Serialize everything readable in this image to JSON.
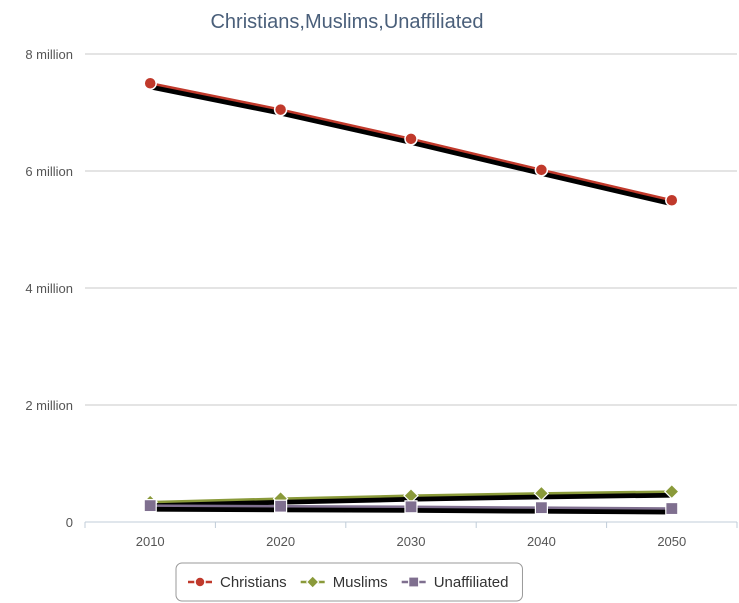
{
  "chart_data": {
    "type": "line",
    "title": "Christians,Muslims,Unaffiliated",
    "xlabel": "",
    "ylabel": "",
    "categories": [
      "2010",
      "2020",
      "2030",
      "2040",
      "2050"
    ],
    "y_ticks": [
      {
        "value": 0,
        "label": "0"
      },
      {
        "value": 2000000,
        "label": "2 million"
      },
      {
        "value": 4000000,
        "label": "4 million"
      },
      {
        "value": 6000000,
        "label": "6 million"
      },
      {
        "value": 8000000,
        "label": "8 million"
      }
    ],
    "ylim": [
      0,
      8000000
    ],
    "grid": true,
    "legend_position": "bottom",
    "series": [
      {
        "name": "Christians",
        "color": "#c0392b",
        "marker": "circle",
        "values": [
          7500000,
          7050000,
          6550000,
          6020000,
          5500000
        ]
      },
      {
        "name": "Muslims",
        "color": "#8a9a3a",
        "marker": "diamond",
        "values": [
          340000,
          400000,
          450000,
          490000,
          520000
        ]
      },
      {
        "name": "Unaffiliated",
        "color": "#7f6f8f",
        "marker": "square",
        "values": [
          280000,
          270000,
          260000,
          245000,
          230000
        ]
      }
    ]
  }
}
